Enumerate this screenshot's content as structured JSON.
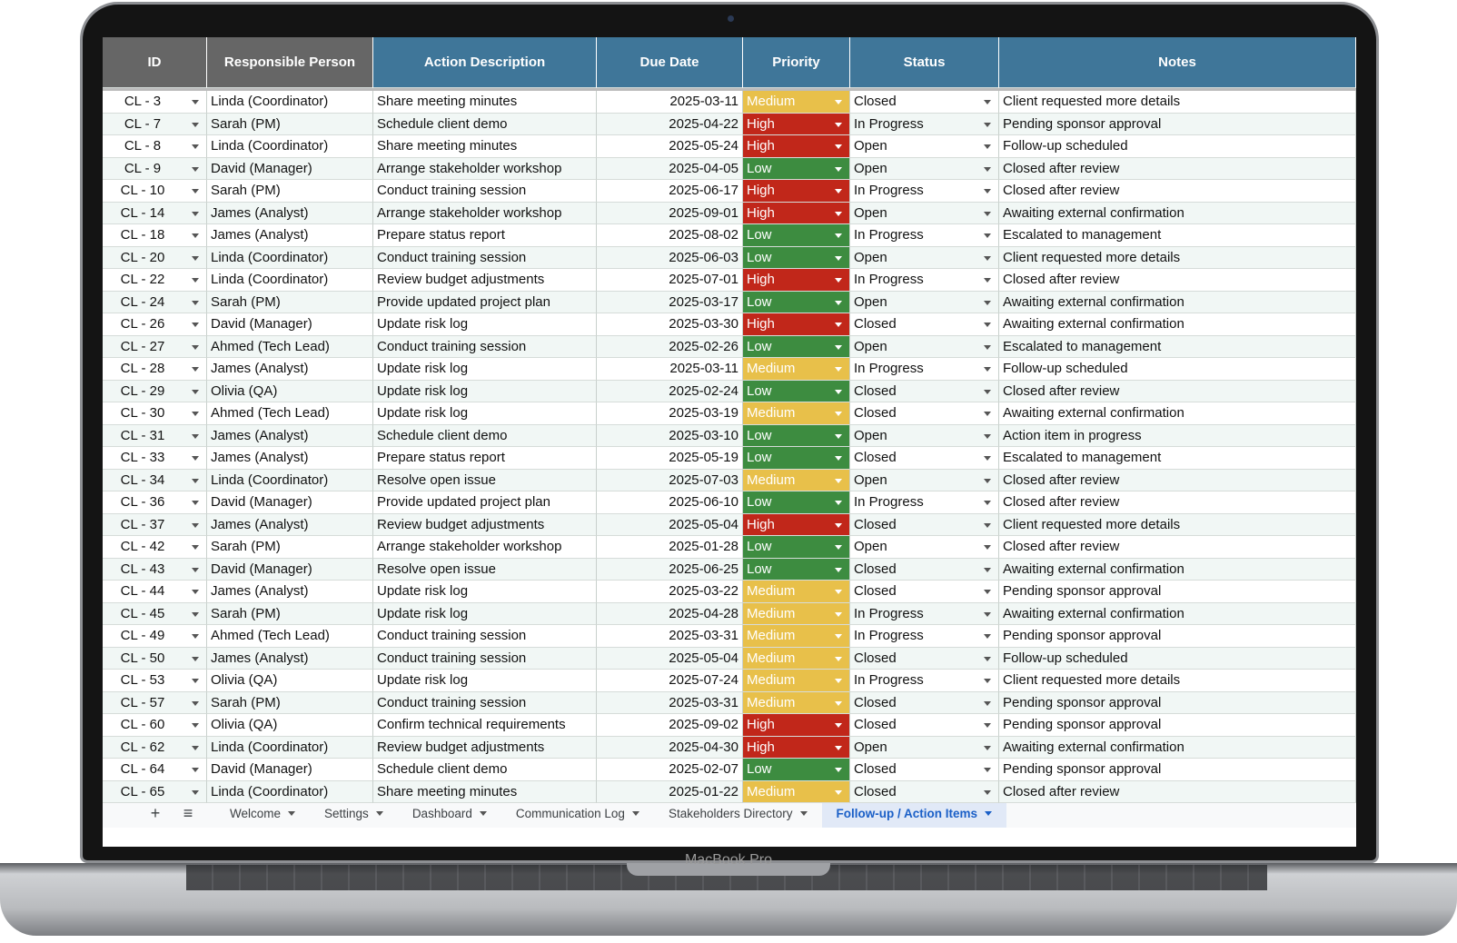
{
  "table": {
    "columns": [
      "ID",
      "Responsible Person",
      "Action Description",
      "Due Date",
      "Priority",
      "Status",
      "Notes"
    ],
    "rows": [
      [
        "CL - 3",
        "Linda (Coordinator)",
        "Share meeting minutes",
        "2025-03-11",
        "Medium",
        "Closed",
        "Client requested more details"
      ],
      [
        "CL - 7",
        "Sarah (PM)",
        "Schedule client demo",
        "2025-04-22",
        "High",
        "In Progress",
        "Pending sponsor approval"
      ],
      [
        "CL - 8",
        "Linda (Coordinator)",
        "Share meeting minutes",
        "2025-05-24",
        "High",
        "Open",
        "Follow-up scheduled"
      ],
      [
        "CL - 9",
        "David (Manager)",
        "Arrange stakeholder workshop",
        "2025-04-05",
        "Low",
        "Open",
        "Closed after review"
      ],
      [
        "CL - 10",
        "Sarah (PM)",
        "Conduct training session",
        "2025-06-17",
        "High",
        "In Progress",
        "Closed after review"
      ],
      [
        "CL - 14",
        "James (Analyst)",
        "Arrange stakeholder workshop",
        "2025-09-01",
        "High",
        "Open",
        "Awaiting external confirmation"
      ],
      [
        "CL - 18",
        "James (Analyst)",
        "Prepare status report",
        "2025-08-02",
        "Low",
        "In Progress",
        "Escalated to management"
      ],
      [
        "CL - 20",
        "Linda (Coordinator)",
        "Conduct training session",
        "2025-06-03",
        "Low",
        "Open",
        "Client requested more details"
      ],
      [
        "CL - 22",
        "Linda (Coordinator)",
        "Review budget adjustments",
        "2025-07-01",
        "High",
        "In Progress",
        "Closed after review"
      ],
      [
        "CL - 24",
        "Sarah (PM)",
        "Provide updated project plan",
        "2025-03-17",
        "Low",
        "Open",
        "Awaiting external confirmation"
      ],
      [
        "CL - 26",
        "David (Manager)",
        "Update risk log",
        "2025-03-30",
        "High",
        "Closed",
        "Awaiting external confirmation"
      ],
      [
        "CL - 27",
        "Ahmed (Tech Lead)",
        "Conduct training session",
        "2025-02-26",
        "Low",
        "Open",
        "Escalated to management"
      ],
      [
        "CL - 28",
        "James (Analyst)",
        "Update risk log",
        "2025-03-11",
        "Medium",
        "In Progress",
        "Follow-up scheduled"
      ],
      [
        "CL - 29",
        "Olivia (QA)",
        "Update risk log",
        "2025-02-24",
        "Low",
        "Closed",
        "Closed after review"
      ],
      [
        "CL - 30",
        "Ahmed (Tech Lead)",
        "Update risk log",
        "2025-03-19",
        "Medium",
        "Closed",
        "Awaiting external confirmation"
      ],
      [
        "CL - 31",
        "James (Analyst)",
        "Schedule client demo",
        "2025-03-10",
        "Low",
        "Open",
        "Action item in progress"
      ],
      [
        "CL - 33",
        "James (Analyst)",
        "Prepare status report",
        "2025-05-19",
        "Low",
        "Closed",
        "Escalated to management"
      ],
      [
        "CL - 34",
        "Linda (Coordinator)",
        "Resolve open issue",
        "2025-07-03",
        "Medium",
        "Open",
        "Closed after review"
      ],
      [
        "CL - 36",
        "David (Manager)",
        "Provide updated project plan",
        "2025-06-10",
        "Low",
        "In Progress",
        "Closed after review"
      ],
      [
        "CL - 37",
        "James (Analyst)",
        "Review budget adjustments",
        "2025-05-04",
        "High",
        "Closed",
        "Client requested more details"
      ],
      [
        "CL - 42",
        "Sarah (PM)",
        "Arrange stakeholder workshop",
        "2025-01-28",
        "Low",
        "Open",
        "Closed after review"
      ],
      [
        "CL - 43",
        "David (Manager)",
        "Resolve open issue",
        "2025-06-25",
        "Low",
        "Closed",
        "Awaiting external confirmation"
      ],
      [
        "CL - 44",
        "James (Analyst)",
        "Update risk log",
        "2025-03-22",
        "Medium",
        "Closed",
        "Pending sponsor approval"
      ],
      [
        "CL - 45",
        "Sarah (PM)",
        "Update risk log",
        "2025-04-28",
        "Medium",
        "In Progress",
        "Awaiting external confirmation"
      ],
      [
        "CL - 49",
        "Ahmed (Tech Lead)",
        "Conduct training session",
        "2025-03-31",
        "Medium",
        "In Progress",
        "Pending sponsor approval"
      ],
      [
        "CL - 50",
        "James (Analyst)",
        "Conduct training session",
        "2025-05-04",
        "Medium",
        "Closed",
        "Follow-up scheduled"
      ],
      [
        "CL - 53",
        "Olivia (QA)",
        "Update risk log",
        "2025-07-24",
        "Medium",
        "In Progress",
        "Client requested more details"
      ],
      [
        "CL - 57",
        "Sarah (PM)",
        "Conduct training session",
        "2025-03-31",
        "Medium",
        "Closed",
        "Pending sponsor approval"
      ],
      [
        "CL - 60",
        "Olivia (QA)",
        "Confirm technical requirements",
        "2025-09-02",
        "High",
        "Closed",
        "Pending sponsor approval"
      ],
      [
        "CL - 62",
        "Linda (Coordinator)",
        "Review budget adjustments",
        "2025-04-30",
        "High",
        "Open",
        "Awaiting external confirmation"
      ],
      [
        "CL - 64",
        "David (Manager)",
        "Schedule client demo",
        "2025-02-07",
        "Low",
        "Closed",
        "Pending sponsor approval"
      ],
      [
        "CL - 65",
        "Linda (Coordinator)",
        "Share meeting minutes",
        "2025-01-22",
        "Medium",
        "Closed",
        "Closed after review"
      ]
    ]
  },
  "sheet_tabs": [
    "Welcome",
    "Settings",
    "Dashboard",
    "Communication Log",
    "Stakeholders Directory",
    "Follow-up / Action Items"
  ],
  "active_tab": 5,
  "device_label": "MacBook Pro"
}
